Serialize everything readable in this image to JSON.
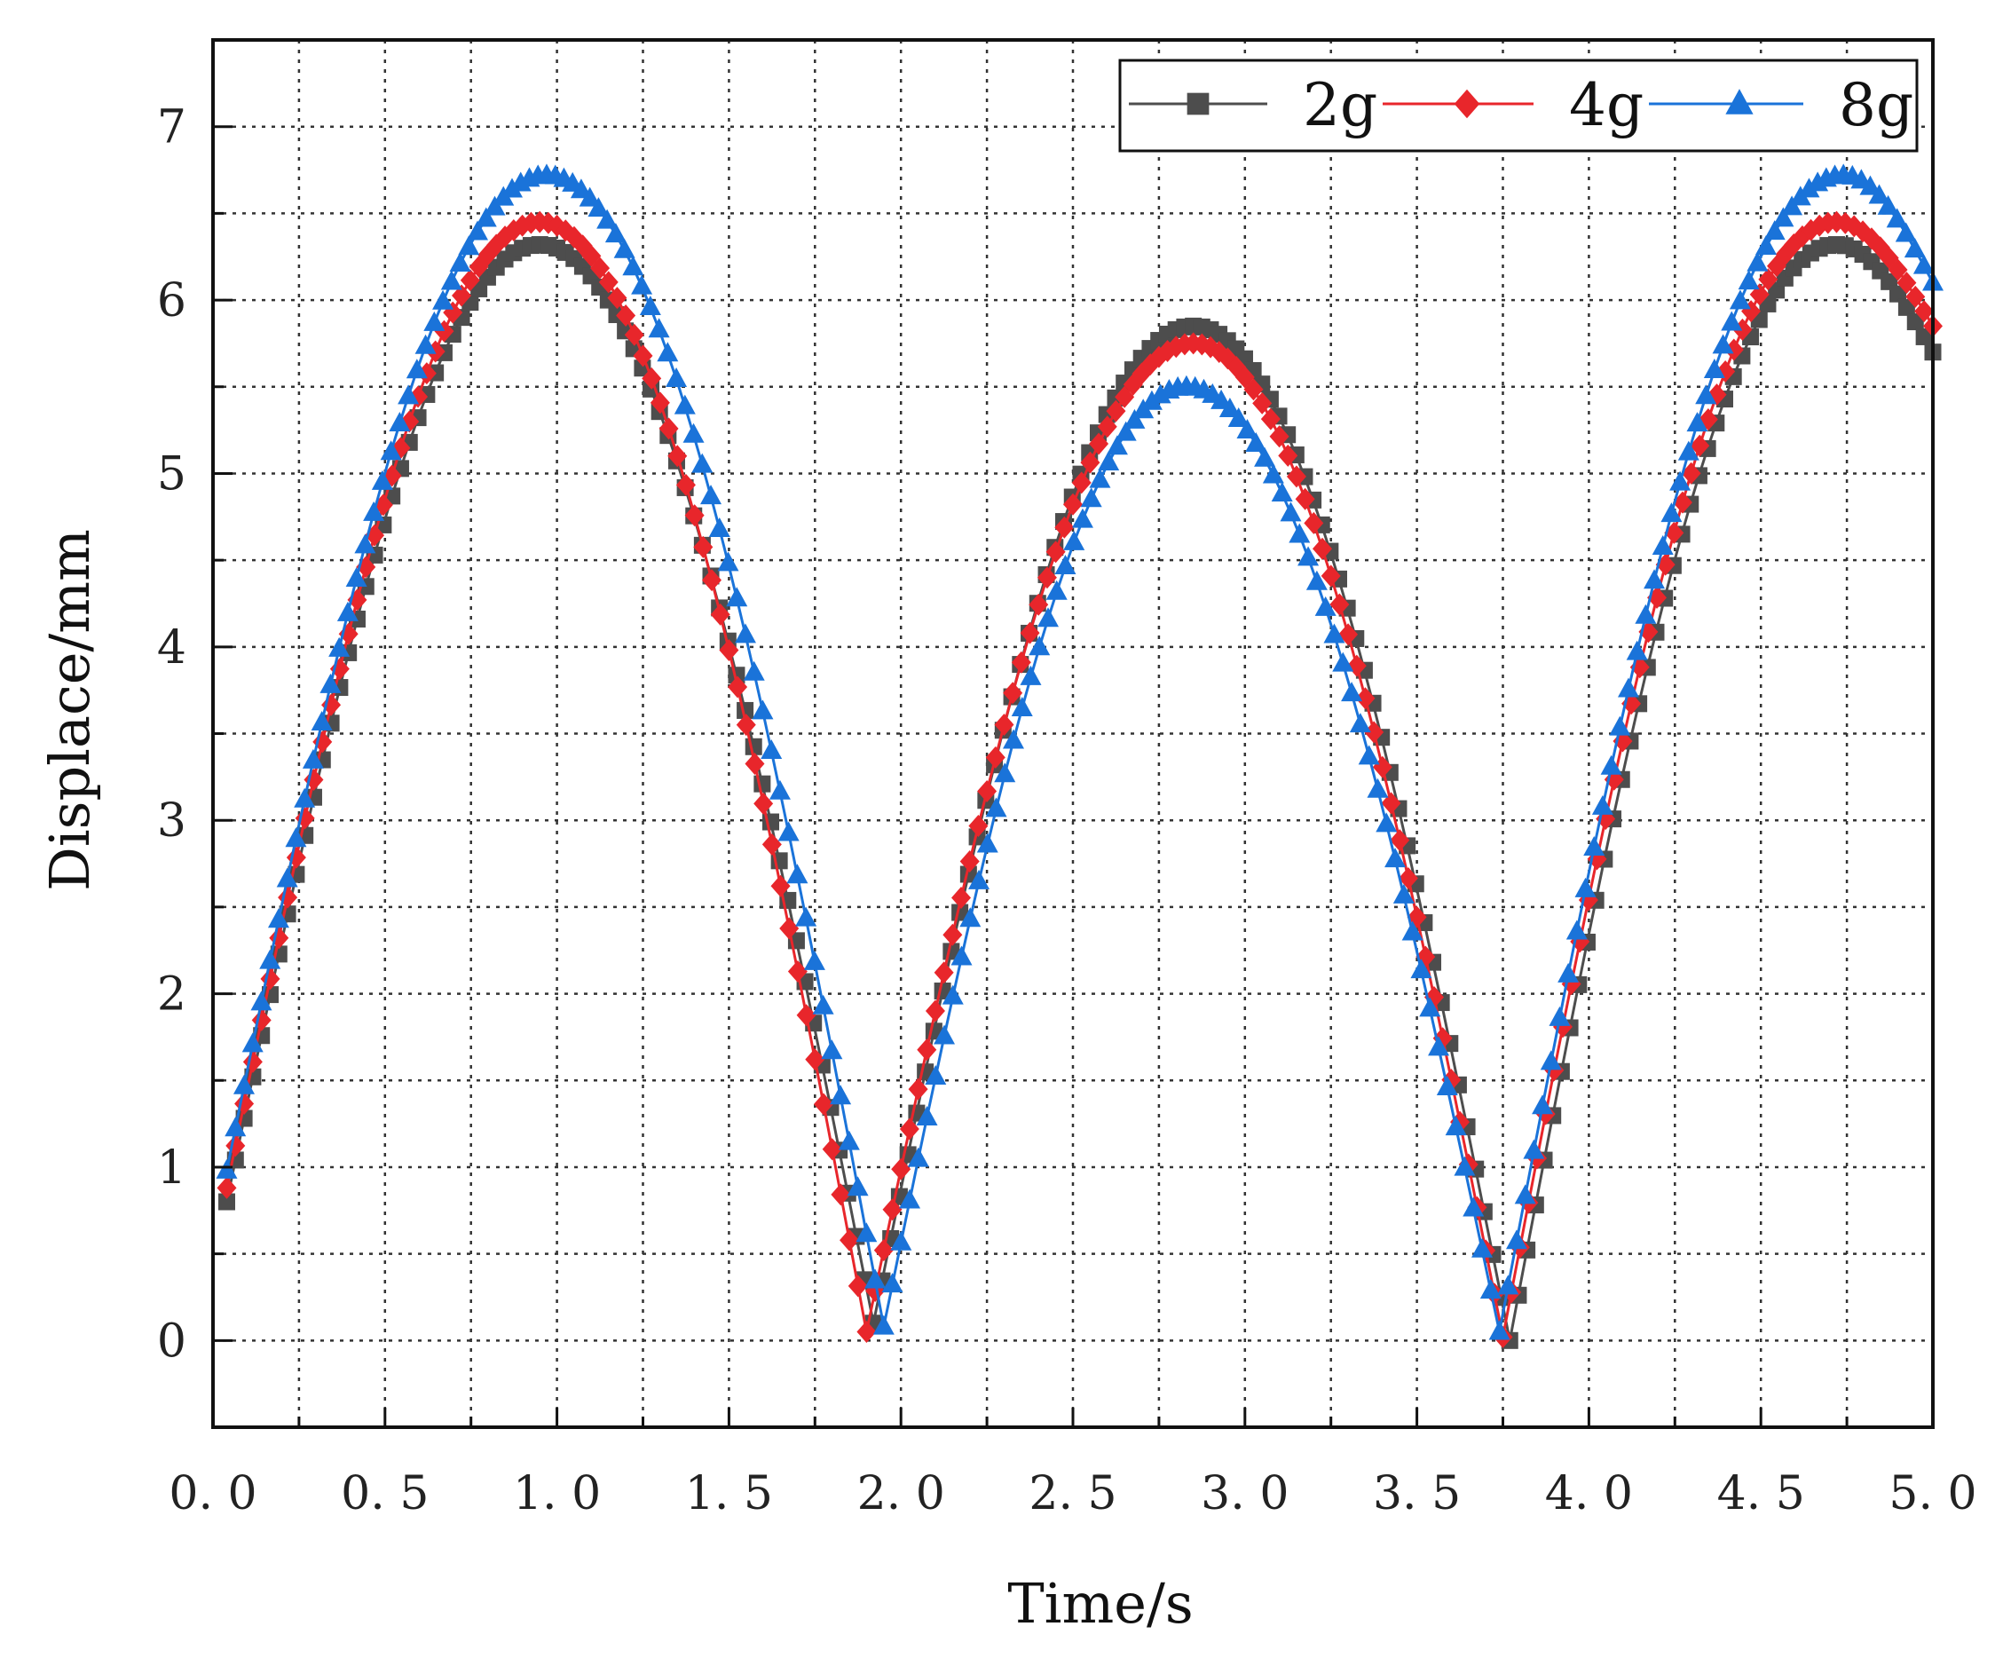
{
  "chart_data": {
    "type": "line",
    "title": "",
    "xlabel": "Time/s",
    "ylabel": "Displace/mm",
    "xlim": [
      0.0,
      5.0
    ],
    "ylim": [
      -0.5,
      7.5
    ],
    "x_ticks": [
      0.0,
      0.5,
      1.0,
      1.5,
      2.0,
      2.5,
      3.0,
      3.5,
      4.0,
      4.5,
      5.0
    ],
    "x_tick_labels": [
      "0. 0",
      "0. 5",
      "1. 0",
      "1. 5",
      "2. 0",
      "2. 5",
      "3. 0",
      "3. 5",
      "4. 0",
      "4. 5",
      "5. 0"
    ],
    "y_ticks": [
      0,
      1,
      2,
      3,
      4,
      5,
      6,
      7
    ],
    "y_tick_labels": [
      "0",
      "1",
      "2",
      "3",
      "4",
      "5",
      "6",
      "7"
    ],
    "grid": true,
    "legend_position": "top-right",
    "series": [
      {
        "name": "2g",
        "color": "#4d4d4d",
        "marker": "square",
        "keypoints": [
          [
            0.04,
            0.8
          ],
          [
            0.95,
            6.32
          ],
          [
            1.92,
            0.1
          ],
          [
            2.85,
            5.85
          ],
          [
            3.77,
            0.0
          ],
          [
            4.72,
            6.32
          ],
          [
            5.0,
            5.7
          ]
        ]
      },
      {
        "name": "4g",
        "color": "#e8262b",
        "marker": "diamond",
        "keypoints": [
          [
            0.04,
            0.88
          ],
          [
            0.95,
            6.45
          ],
          [
            1.9,
            0.05
          ],
          [
            2.85,
            5.75
          ],
          [
            3.75,
            0.02
          ],
          [
            4.72,
            6.45
          ],
          [
            5.0,
            5.85
          ]
        ]
      },
      {
        "name": "8g",
        "color": "#1a73d9",
        "marker": "triangle",
        "keypoints": [
          [
            0.04,
            0.98
          ],
          [
            0.97,
            6.72
          ],
          [
            1.95,
            0.08
          ],
          [
            2.83,
            5.5
          ],
          [
            3.74,
            0.05
          ],
          [
            4.74,
            6.72
          ],
          [
            5.0,
            6.1
          ]
        ]
      }
    ]
  }
}
